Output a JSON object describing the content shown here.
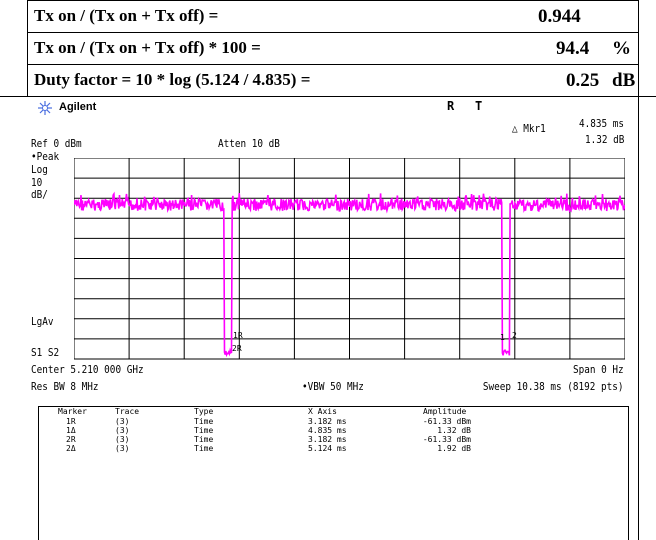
{
  "calc": {
    "rows": [
      {
        "formula": "Tx on / (Tx on + Tx off) =",
        "value": "0.944",
        "unit": ""
      },
      {
        "formula": "Tx on / (Tx on + Tx off) * 100 =",
        "value": "94.4",
        "unit": "%"
      },
      {
        "formula": "Duty factor = 10 * log (5.124 / 4.835) =",
        "value": "0.25",
        "unit": "dB"
      }
    ]
  },
  "analyzer": {
    "brand": "Agilent",
    "status_r": "R",
    "status_t": "T",
    "marker_readout": {
      "label": "△ Mkr1",
      "x": "4.835 ms",
      "y": "1.32 dB"
    },
    "ref_level": "Ref 0 dBm",
    "atten": "Atten 10 dB",
    "detector": "•Peak",
    "scale_type": "Log",
    "scale_value": "10",
    "scale_unit": "dB/",
    "lgav": "LgAv",
    "s1s2": "S1  S2",
    "center": "Center 5.210 000 GHz",
    "span": "Span 0 Hz",
    "rbw": "Res BW 8 MHz",
    "vbw": "•VBW 50 MHz",
    "sweep": "Sweep 10.38 ms (8192 pts)",
    "trace_color": "#ff00ff",
    "trace_markers": [
      {
        "label": "1R"
      },
      {
        "label": "2R"
      },
      {
        "label": "1"
      },
      {
        "label": "2"
      }
    ],
    "marker_table": {
      "headers": [
        "Marker",
        "Trace",
        "Type",
        "X Axis",
        "Amplitude"
      ],
      "rows": [
        [
          "1R",
          "(3)",
          "Time",
          "3.182 ms",
          "-61.33 dBm"
        ],
        [
          "1Δ",
          "(3)",
          "Time",
          "4.835 ms",
          "1.32 dB"
        ],
        [
          "2R",
          "(3)",
          "Time",
          "3.182 ms",
          "-61.33 dBm"
        ],
        [
          "2Δ",
          "(3)",
          "Time",
          "5.124 ms",
          "1.92 dB"
        ]
      ]
    }
  }
}
